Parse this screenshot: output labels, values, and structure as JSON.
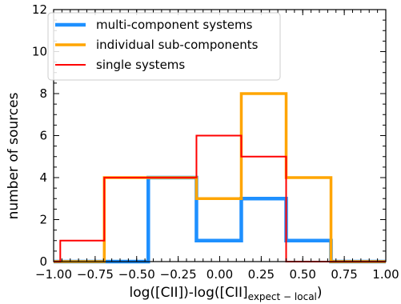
{
  "chart_data": {
    "type": "histogram",
    "xlabel": {
      "main": "log([CII])-log([CII]",
      "subscript": "expect − local",
      "tail": ")"
    },
    "ylabel": "number of sources",
    "xlim": [
      -1.0,
      1.0
    ],
    "ylim": [
      0,
      12
    ],
    "xticks": [
      -1.0,
      -0.75,
      -0.5,
      -0.25,
      0.0,
      0.25,
      0.5,
      0.75,
      1.0
    ],
    "xtick_labels": [
      "−1.00",
      "−0.75",
      "−0.50",
      "−0.25",
      "0.00",
      "0.25",
      "0.50",
      "0.75",
      "1.00"
    ],
    "yticks": [
      0,
      2,
      4,
      6,
      8,
      10,
      12
    ],
    "ytick_labels": [
      "0",
      "2",
      "4",
      "6",
      "8",
      "10",
      "12"
    ],
    "bin_edges": [
      -0.96,
      -0.695,
      -0.43,
      -0.14,
      0.13,
      0.4,
      0.67
    ],
    "legend_position": "upper-left",
    "series": [
      {
        "name": "multi-component systems",
        "color": "#1e90ff",
        "counts": [
          0,
          0,
          4,
          1,
          3,
          1
        ]
      },
      {
        "name": "individual sub-components",
        "color": "#ffa500",
        "counts": [
          0,
          4,
          4,
          3,
          8,
          4
        ]
      },
      {
        "name": "single systems",
        "color": "#ff0000",
        "counts": [
          1,
          4,
          4,
          6,
          5,
          0
        ]
      }
    ]
  }
}
